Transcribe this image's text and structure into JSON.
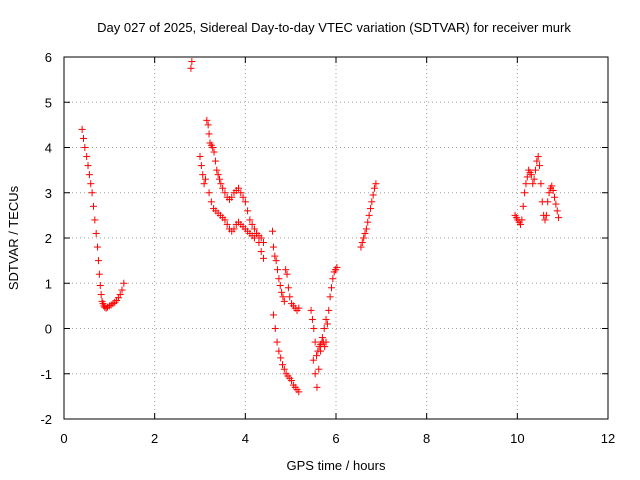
{
  "chart_data": {
    "type": "scatter",
    "title": "Day 027 of 2025, Sidereal Day-to-day VTEC variation (SDTVAR) for receiver murk",
    "xlabel": "GPS time / hours",
    "ylabel": "SDTVAR / TECUs",
    "xlim": [
      0,
      12
    ],
    "ylim": [
      -2,
      6
    ],
    "xticks": [
      "0",
      "2",
      "4",
      "6",
      "8",
      "10",
      "12"
    ],
    "yticks": [
      "-2",
      "-1",
      "0",
      "1",
      "2",
      "3",
      "4",
      "5",
      "6"
    ],
    "grid": true,
    "marker": "+",
    "color": "#ff0000",
    "series": [
      {
        "name": "SDTVAR",
        "x": [
          0.4,
          0.43,
          0.46,
          0.5,
          0.53,
          0.56,
          0.59,
          0.62,
          0.65,
          0.68,
          0.71,
          0.74,
          0.76,
          0.78,
          0.8,
          0.82,
          0.84,
          0.86,
          0.88,
          0.9,
          0.93,
          0.96,
          1.0,
          1.04,
          1.08,
          1.12,
          1.16,
          1.2,
          1.24,
          1.28,
          1.32,
          2.8,
          2.82,
          3.0,
          3.03,
          3.06,
          3.09,
          3.12,
          3.15,
          3.18,
          3.2,
          3.22,
          3.25,
          3.28,
          3.31,
          3.34,
          3.37,
          3.4,
          3.43,
          3.46,
          3.5,
          3.55,
          3.6,
          3.65,
          3.7,
          3.75,
          3.8,
          3.85,
          3.9,
          3.95,
          4.0,
          4.05,
          4.1,
          4.15,
          4.2,
          4.25,
          4.3,
          4.35,
          4.4,
          3.2,
          3.25,
          3.3,
          3.35,
          3.4,
          3.45,
          3.5,
          3.55,
          3.6,
          3.65,
          3.7,
          3.75,
          3.8,
          3.85,
          3.9,
          3.95,
          4.0,
          4.05,
          4.1,
          4.15,
          4.2,
          4.25,
          4.3,
          4.35,
          4.4,
          4.6,
          4.62,
          4.65,
          4.68,
          4.71,
          4.74,
          4.77,
          4.8,
          4.83,
          4.86,
          4.89,
          4.92,
          4.95,
          4.98,
          5.02,
          5.06,
          5.1,
          5.14,
          5.18,
          4.62,
          4.66,
          4.7,
          4.74,
          4.78,
          4.82,
          4.86,
          4.9,
          4.94,
          4.98,
          5.02,
          5.06,
          5.1,
          5.14,
          5.18,
          5.45,
          5.48,
          5.51,
          5.54,
          5.57,
          5.6,
          5.63,
          5.66,
          5.69,
          5.72,
          5.75,
          5.78,
          5.81,
          5.84,
          5.87,
          5.9,
          5.93,
          5.96,
          5.99,
          6.02,
          5.5,
          5.54,
          5.58,
          5.62,
          5.66,
          5.7,
          5.74,
          5.78,
          6.55,
          6.58,
          6.61,
          6.64,
          6.67,
          6.7,
          6.73,
          6.76,
          6.79,
          6.82,
          6.85,
          6.88,
          9.95,
          9.98,
          10.01,
          10.04,
          10.07,
          10.1,
          10.13,
          10.16,
          10.19,
          10.22,
          10.25,
          10.28,
          10.31,
          10.34,
          10.37,
          10.4,
          10.43,
          10.46,
          10.49,
          10.52,
          10.55,
          10.58,
          10.61,
          10.64,
          10.67,
          10.7,
          10.73,
          10.76,
          10.79,
          10.82,
          10.85,
          10.88,
          10.91
        ],
        "y": [
          4.4,
          4.2,
          4.0,
          3.8,
          3.6,
          3.4,
          3.2,
          3.0,
          2.7,
          2.4,
          2.1,
          1.8,
          1.5,
          1.2,
          0.95,
          0.75,
          0.6,
          0.55,
          0.5,
          0.47,
          0.45,
          0.47,
          0.5,
          0.52,
          0.55,
          0.58,
          0.62,
          0.68,
          0.75,
          0.85,
          1.0,
          5.75,
          5.9,
          3.8,
          3.6,
          3.4,
          3.2,
          3.3,
          4.6,
          4.5,
          4.3,
          4.1,
          4.05,
          4.0,
          3.9,
          3.7,
          3.5,
          3.4,
          3.3,
          3.2,
          3.1,
          3.0,
          2.9,
          2.85,
          2.9,
          3.0,
          3.05,
          3.1,
          3.0,
          2.9,
          2.8,
          2.6,
          2.4,
          2.3,
          2.2,
          2.1,
          1.9,
          1.7,
          1.55,
          3.0,
          2.8,
          2.65,
          2.6,
          2.55,
          2.5,
          2.45,
          2.4,
          2.3,
          2.2,
          2.15,
          2.2,
          2.3,
          2.35,
          2.3,
          2.25,
          2.2,
          2.15,
          2.1,
          2.05,
          2.0,
          2.1,
          2.05,
          2.0,
          1.9,
          2.15,
          1.8,
          1.6,
          1.5,
          1.3,
          1.1,
          0.95,
          0.8,
          0.7,
          0.6,
          1.3,
          1.2,
          0.9,
          0.7,
          0.55,
          0.5,
          0.45,
          0.4,
          0.45,
          0.3,
          0.0,
          -0.3,
          -0.5,
          -0.65,
          -0.8,
          -0.9,
          -1.0,
          -1.05,
          -1.1,
          -1.15,
          -1.25,
          -1.3,
          -1.35,
          -1.4,
          0.4,
          0.2,
          0.0,
          -0.3,
          -0.6,
          -0.5,
          -0.4,
          -0.35,
          -0.3,
          -0.3,
          -0.4,
          -0.3,
          0.1,
          0.4,
          0.7,
          0.9,
          1.1,
          1.25,
          1.3,
          1.35,
          -0.7,
          -1.0,
          -1.3,
          -0.9,
          -0.5,
          -0.2,
          0.0,
          0.2,
          1.8,
          1.9,
          2.0,
          2.1,
          2.2,
          2.35,
          2.5,
          2.65,
          2.8,
          2.95,
          3.1,
          3.2,
          2.5,
          2.45,
          2.4,
          2.35,
          2.3,
          2.4,
          2.7,
          3.0,
          3.2,
          3.35,
          3.5,
          3.45,
          3.4,
          3.2,
          3.3,
          3.5,
          3.7,
          3.8,
          3.6,
          3.2,
          2.8,
          2.5,
          2.4,
          2.5,
          2.8,
          3.0,
          3.1,
          3.15,
          3.05,
          2.9,
          2.75,
          2.6,
          2.45
        ]
      }
    ]
  }
}
